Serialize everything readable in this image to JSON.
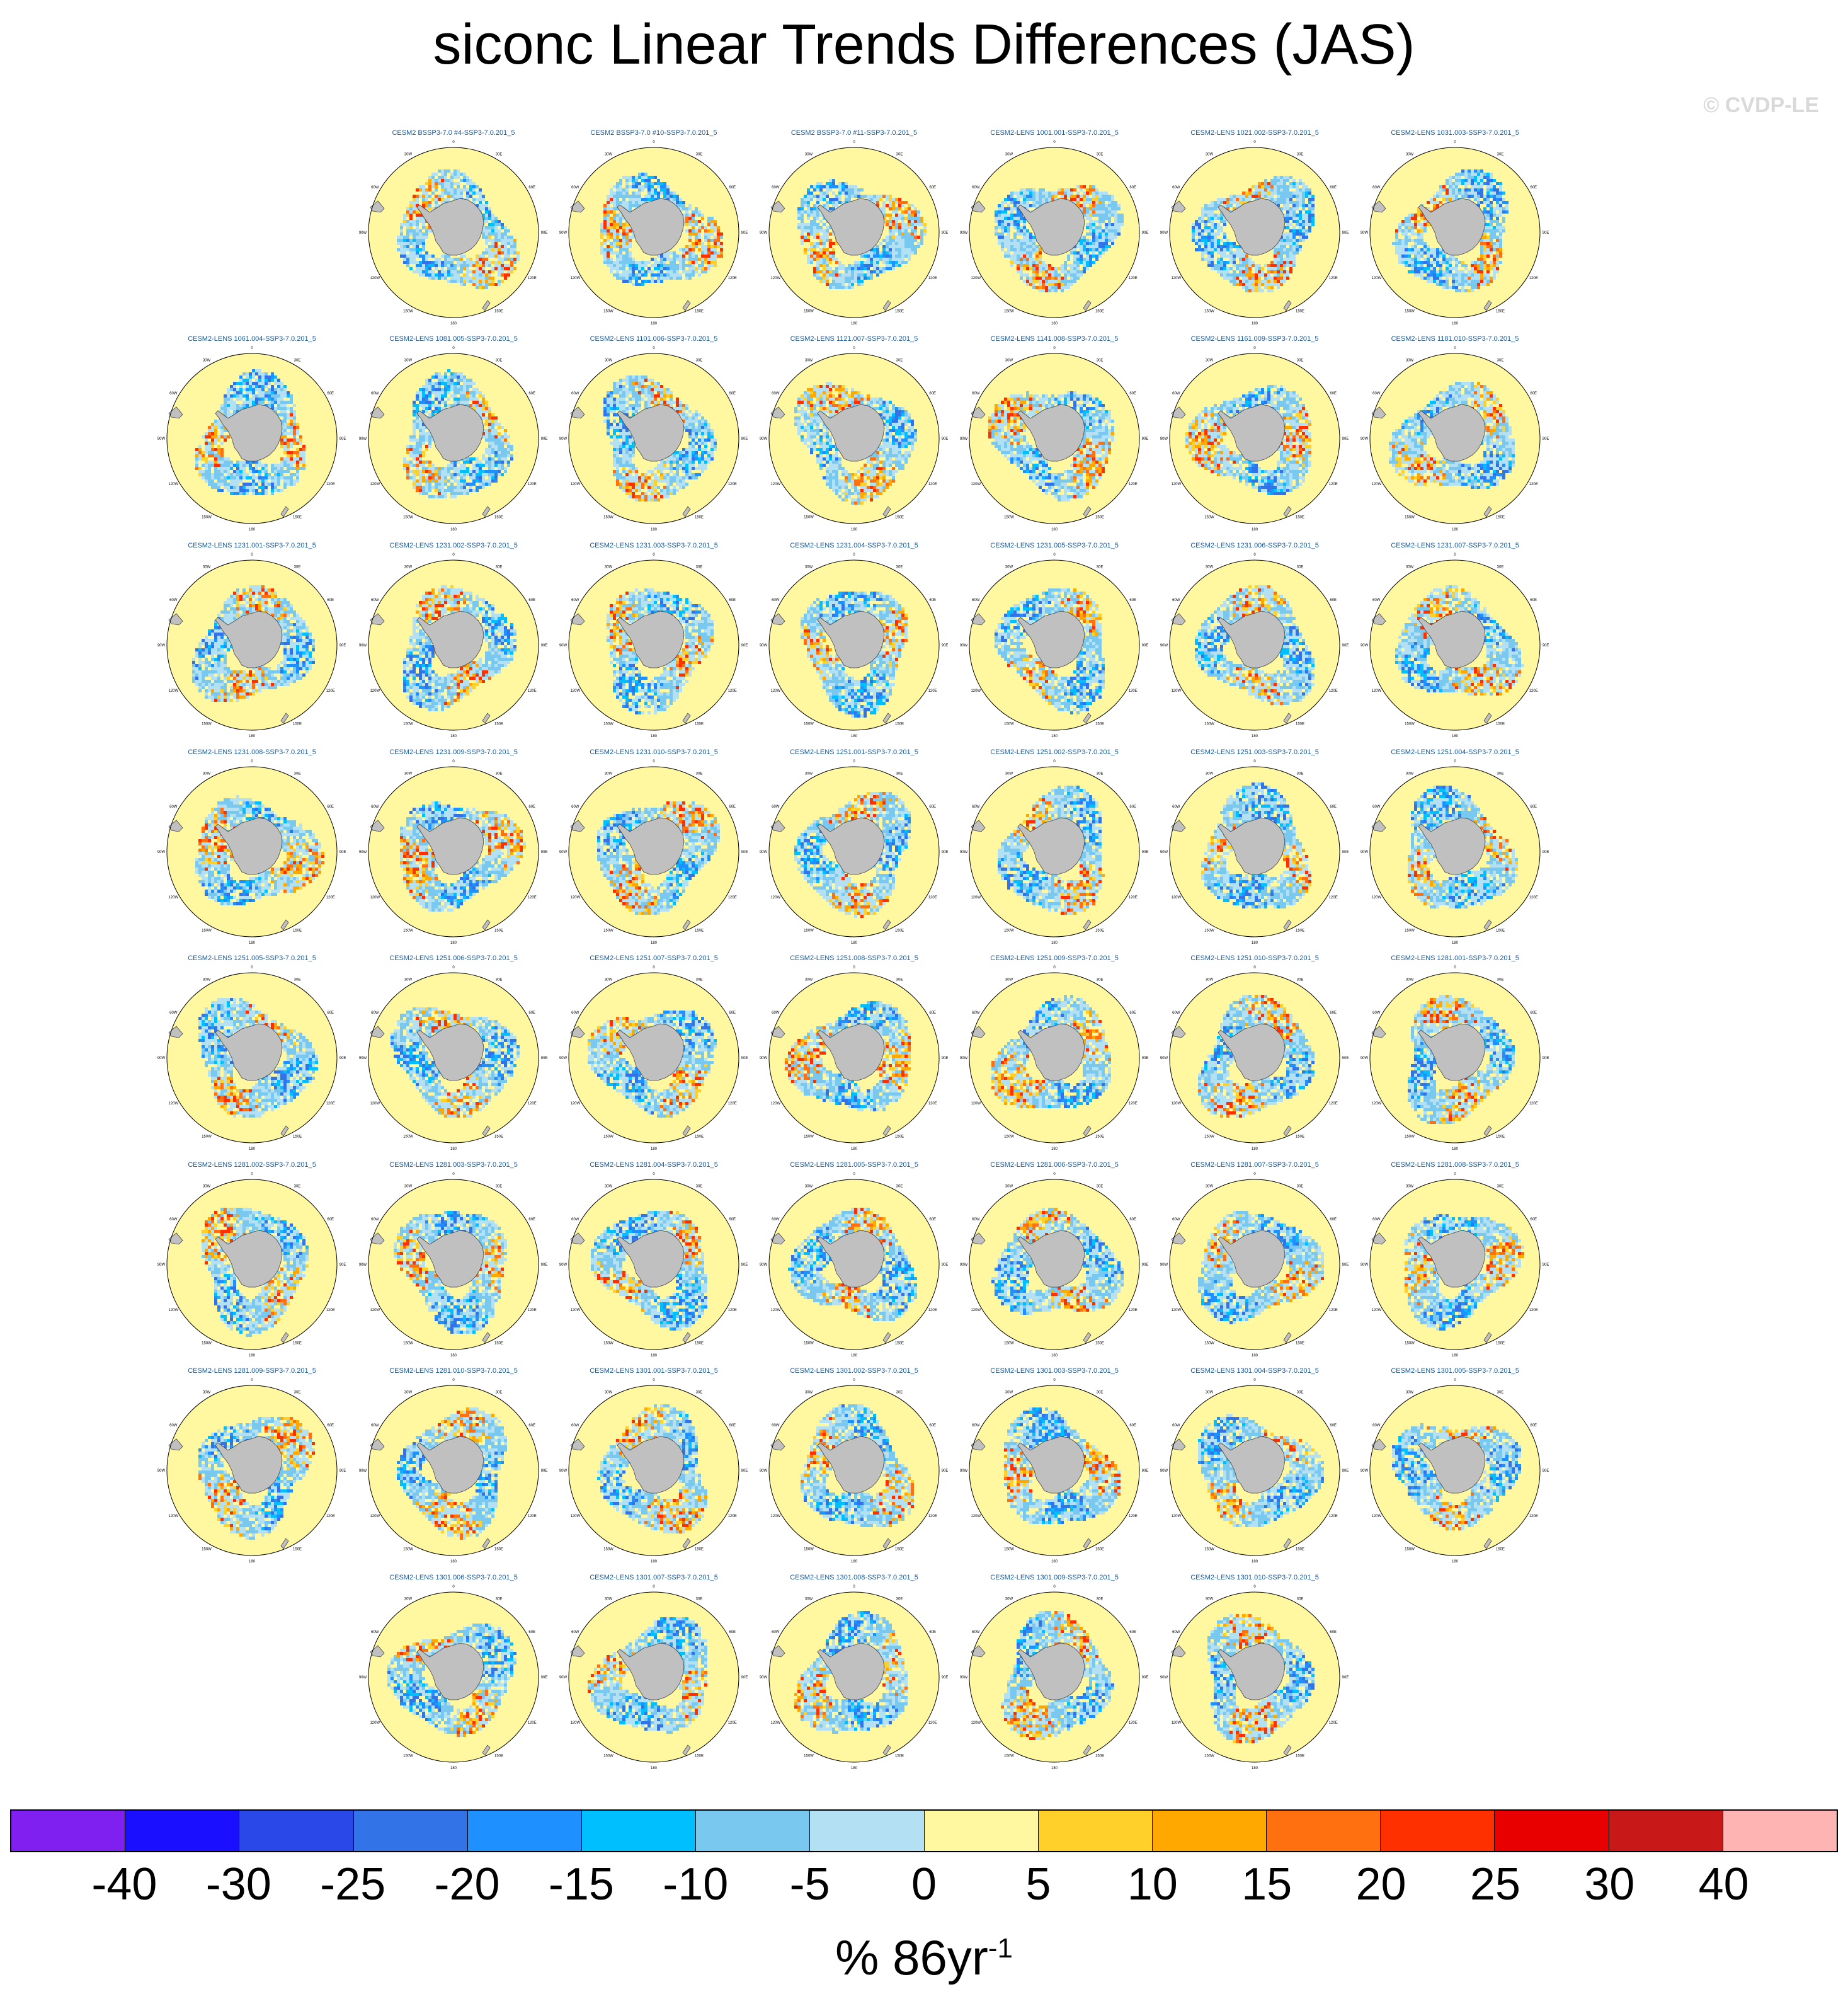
{
  "title": "siconc Linear Trends Differences (JAS)",
  "copyright": "© CVDP-LE",
  "units": {
    "text": "% 86yr",
    "exponent": "-1"
  },
  "colorbar": {
    "colors": [
      "#8020f0",
      "#1a10ff",
      "#2a48e8",
      "#3274e8",
      "#1e90ff",
      "#00bfff",
      "#78c8f0",
      "#b4e0f4",
      "#fff8a0",
      "#ffd02a",
      "#ffa800",
      "#ff7010",
      "#ff3000",
      "#e80000",
      "#c81818",
      "#ffb4b4"
    ],
    "ticks": [
      "-40",
      "-30",
      "-25",
      "-20",
      "-15",
      "-10",
      "-5",
      "0",
      "5",
      "10",
      "15",
      "20",
      "25",
      "30",
      "40"
    ]
  },
  "map": {
    "lon_labels": [
      "0",
      "30E",
      "60E",
      "90E",
      "120E",
      "150E",
      "180",
      "150W",
      "120W",
      "90W",
      "60W",
      "30W"
    ],
    "ocean_color": "#fff8a0",
    "land_color": "#c0c0c0"
  },
  "panels": [
    {
      "title": "CESM2 BSSP3-7.0 #4-SSP3-7.0.201_5"
    },
    {
      "title": "CESM2 BSSP3-7.0 #10-SSP3-7.0.201_5"
    },
    {
      "title": "CESM2 BSSP3-7.0 #11-SSP3-7.0.201_5"
    },
    {
      "title": "CESM2-LENS 1001.001-SSP3-7.0.201_5"
    },
    {
      "title": "CESM2-LENS 1021.002-SSP3-7.0.201_5"
    },
    {
      "title": "CESM2-LENS 1031.003-SSP3-7.0.201_5"
    },
    {
      "title": "CESM2-LENS 1061.004-SSP3-7.0.201_5"
    },
    {
      "title": "CESM2-LENS 1081.005-SSP3-7.0.201_5"
    },
    {
      "title": "CESM2-LENS 1101.006-SSP3-7.0.201_5"
    },
    {
      "title": "CESM2-LENS 1121.007-SSP3-7.0.201_5"
    },
    {
      "title": "CESM2-LENS 1141.008-SSP3-7.0.201_5"
    },
    {
      "title": "CESM2-LENS 1161.009-SSP3-7.0.201_5"
    },
    {
      "title": "CESM2-LENS 1181.010-SSP3-7.0.201_5"
    },
    {
      "title": "CESM2-LENS 1231.001-SSP3-7.0.201_5"
    },
    {
      "title": "CESM2-LENS 1231.002-SSP3-7.0.201_5"
    },
    {
      "title": "CESM2-LENS 1231.003-SSP3-7.0.201_5"
    },
    {
      "title": "CESM2-LENS 1231.004-SSP3-7.0.201_5"
    },
    {
      "title": "CESM2-LENS 1231.005-SSP3-7.0.201_5"
    },
    {
      "title": "CESM2-LENS 1231.006-SSP3-7.0.201_5"
    },
    {
      "title": "CESM2-LENS 1231.007-SSP3-7.0.201_5"
    },
    {
      "title": "CESM2-LENS 1231.008-SSP3-7.0.201_5"
    },
    {
      "title": "CESM2-LENS 1231.009-SSP3-7.0.201_5"
    },
    {
      "title": "CESM2-LENS 1231.010-SSP3-7.0.201_5"
    },
    {
      "title": "CESM2-LENS 1251.001-SSP3-7.0.201_5"
    },
    {
      "title": "CESM2-LENS 1251.002-SSP3-7.0.201_5"
    },
    {
      "title": "CESM2-LENS 1251.003-SSP3-7.0.201_5"
    },
    {
      "title": "CESM2-LENS 1251.004-SSP3-7.0.201_5"
    },
    {
      "title": "CESM2-LENS 1251.005-SSP3-7.0.201_5"
    },
    {
      "title": "CESM2-LENS 1251.006-SSP3-7.0.201_5"
    },
    {
      "title": "CESM2-LENS 1251.007-SSP3-7.0.201_5"
    },
    {
      "title": "CESM2-LENS 1251.008-SSP3-7.0.201_5"
    },
    {
      "title": "CESM2-LENS 1251.009-SSP3-7.0.201_5"
    },
    {
      "title": "CESM2-LENS 1251.010-SSP3-7.0.201_5"
    },
    {
      "title": "CESM2-LENS 1281.001-SSP3-7.0.201_5"
    },
    {
      "title": "CESM2-LENS 1281.002-SSP3-7.0.201_5"
    },
    {
      "title": "CESM2-LENS 1281.003-SSP3-7.0.201_5"
    },
    {
      "title": "CESM2-LENS 1281.004-SSP3-7.0.201_5"
    },
    {
      "title": "CESM2-LENS 1281.005-SSP3-7.0.201_5"
    },
    {
      "title": "CESM2-LENS 1281.006-SSP3-7.0.201_5"
    },
    {
      "title": "CESM2-LENS 1281.007-SSP3-7.0.201_5"
    },
    {
      "title": "CESM2-LENS 1281.008-SSP3-7.0.201_5"
    },
    {
      "title": "CESM2-LENS 1281.009-SSP3-7.0.201_5"
    },
    {
      "title": "CESM2-LENS 1281.010-SSP3-7.0.201_5"
    },
    {
      "title": "CESM2-LENS 1301.001-SSP3-7.0.201_5"
    },
    {
      "title": "CESM2-LENS 1301.002-SSP3-7.0.201_5"
    },
    {
      "title": "CESM2-LENS 1301.003-SSP3-7.0.201_5"
    },
    {
      "title": "CESM2-LENS 1301.004-SSP3-7.0.201_5"
    },
    {
      "title": "CESM2-LENS 1301.005-SSP3-7.0.201_5"
    },
    {
      "title": "CESM2-LENS 1301.006-SSP3-7.0.201_5"
    },
    {
      "title": "CESM2-LENS 1301.007-SSP3-7.0.201_5"
    },
    {
      "title": "CESM2-LENS 1301.008-SSP3-7.0.201_5"
    },
    {
      "title": "CESM2-LENS 1301.009-SSP3-7.0.201_5"
    },
    {
      "title": "CESM2-LENS 1301.010-SSP3-7.0.201_5"
    }
  ]
}
